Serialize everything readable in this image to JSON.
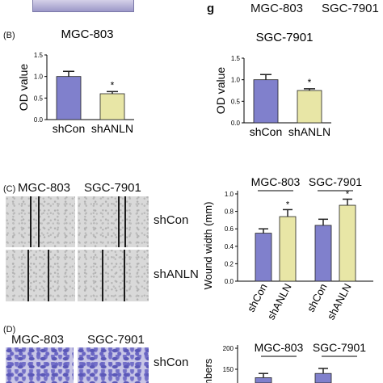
{
  "top_right_labels": {
    "letter": "g",
    "mgc": "MGC-803",
    "sgc": "SGC-7901"
  },
  "panel_b": {
    "label": "(B)",
    "chart_data": [
      {
        "type": "bar",
        "title": "MGC-803",
        "ylabel": "OD value",
        "categories": [
          "shCon",
          "shANLN"
        ],
        "values": [
          1.0,
          0.6
        ],
        "errors": [
          0.12,
          0.05
        ],
        "colors": [
          "#8080cc",
          "#e8e6a6"
        ],
        "ylim": [
          0,
          1.5
        ],
        "ticks": [
          "0.0",
          "0.5",
          "1.0",
          "1.5"
        ],
        "annotations": [
          "",
          "*"
        ]
      },
      {
        "type": "bar",
        "title": "SGC-7901",
        "ylabel": "OD value",
        "categories": [
          "shCon",
          "shANLN"
        ],
        "values": [
          1.0,
          0.75
        ],
        "errors": [
          0.12,
          0.04
        ],
        "colors": [
          "#8080cc",
          "#e8e6a6"
        ],
        "ylim": [
          0,
          1.5
        ],
        "ticks": [
          "0.0",
          "0.5",
          "1.0",
          "1.5"
        ],
        "annotations": [
          "",
          "*"
        ]
      }
    ]
  },
  "panel_c": {
    "label": "(C)",
    "image_titles": {
      "mgc": "MGC-803",
      "sgc": "SGC-7901"
    },
    "row_labels": [
      "shCon",
      "shANLN"
    ],
    "chart_data": {
      "type": "bar",
      "ylabel": "Wound width (mm)",
      "groups": [
        "MGC-803",
        "SGC-7901"
      ],
      "categories": [
        "shCon",
        "shANLN",
        "shCon",
        "shANLN"
      ],
      "values": [
        0.55,
        0.74,
        0.64,
        0.87
      ],
      "errors": [
        0.05,
        0.08,
        0.07,
        0.07
      ],
      "colors": [
        "#8080cc",
        "#e8e6a6",
        "#8080cc",
        "#e8e6a6"
      ],
      "ylim": [
        0,
        1.0
      ],
      "ticks": [
        "0.0",
        "0.2",
        "0.4",
        "0.6",
        "0.8",
        "1.0"
      ],
      "annotations": [
        "",
        "*",
        "",
        "*"
      ]
    }
  },
  "panel_d": {
    "label": "(D)",
    "image_titles": {
      "mgc": "MGC-803",
      "sgc": "SGC-7901"
    },
    "row_labels": [
      "shCon"
    ],
    "chart_data": {
      "type": "bar",
      "ylabel": "numbers",
      "groups": [
        "MGC-803",
        "SGC-7901"
      ],
      "ticks": [
        "200",
        "150"
      ],
      "ylim": [
        0,
        200
      ],
      "values": [
        130,
        140
      ],
      "errors": [
        10,
        12
      ],
      "colors": [
        "#8080cc",
        "#8080cc"
      ]
    }
  }
}
